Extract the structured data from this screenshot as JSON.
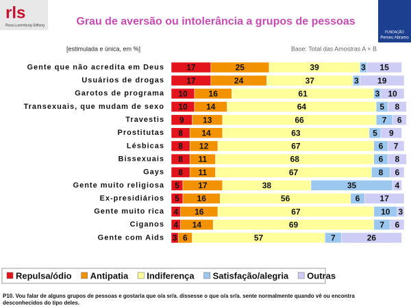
{
  "logo_left": {
    "name": "rls",
    "subtitle": "Rosa-Luxemburg-Stiftung"
  },
  "logo_right": {
    "label": "FUNDAÇÃO",
    "name": "Perseu Abramo"
  },
  "chart_data": {
    "type": "stacked_bar_horizontal",
    "title": "Grau de aversão ou intolerância a grupos de pessoas",
    "subtitle": "[estimulada e única, em %]",
    "base_note": "Base: Total das Amostras A + B",
    "footnote": "P10. Vou falar de alguns grupos de pessoas e gostaria que o/a sr/a. dissesse o que o/a sr/a. sente normalmente  quando vê ou encontra desconhecidos do tipo deles.",
    "categories": [
      "Gente que não acredita em Deus",
      "Usuários de drogas",
      "Garotos de programa",
      "Transexuais, que mudam de sexo",
      "Travestis",
      "Prostitutas",
      "Lésbicas",
      "Bissexuais",
      "Gays",
      "Gente muito religiosa",
      "Ex-presidiários",
      "Gente muito rica",
      "Ciganos",
      "Gente com Aids"
    ],
    "series": [
      {
        "name": "Repulsa/ódio",
        "color": "#e3141b",
        "values": [
          17,
          17,
          10,
          10,
          9,
          8,
          8,
          8,
          8,
          5,
          5,
          4,
          4,
          3
        ]
      },
      {
        "name": "Antipatia",
        "color": "#f39200",
        "values": [
          25,
          24,
          16,
          14,
          13,
          14,
          12,
          11,
          11,
          17,
          16,
          16,
          14,
          6
        ]
      },
      {
        "name": "Indiferença",
        "color": "#ffff9c",
        "values": [
          39,
          37,
          61,
          64,
          66,
          63,
          67,
          68,
          67,
          38,
          56,
          67,
          69,
          57
        ]
      },
      {
        "name": "Satisfação/alegria",
        "color": "#9cc8f0",
        "values": [
          3,
          3,
          3,
          5,
          7,
          5,
          6,
          6,
          8,
          35,
          6,
          10,
          7,
          7
        ]
      },
      {
        "name": "Outras",
        "color": "#cdcdf5",
        "values": [
          15,
          19,
          10,
          8,
          6,
          9,
          7,
          8,
          6,
          4,
          17,
          3,
          6,
          26
        ]
      }
    ],
    "xlim": [
      0,
      100
    ]
  }
}
